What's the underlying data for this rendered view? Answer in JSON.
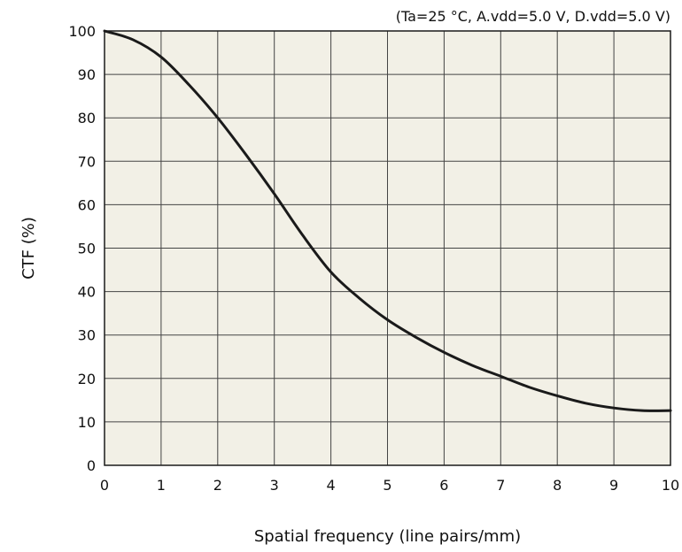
{
  "chart_data": {
    "type": "line",
    "title": "",
    "annotation": "(Ta=25 °C, A.vdd=5.0 V, D.vdd=5.0 V)",
    "xlabel": "Spatial frequency (line pairs/mm)",
    "ylabel": "CTF (%)",
    "xlim": [
      0,
      10
    ],
    "ylim": [
      0,
      100
    ],
    "xticks": [
      "0",
      "1",
      "2",
      "3",
      "4",
      "5",
      "6",
      "7",
      "8",
      "9",
      "10"
    ],
    "yticks": [
      "0",
      "10",
      "20",
      "30",
      "40",
      "50",
      "60",
      "70",
      "80",
      "90",
      "100"
    ],
    "grid": true,
    "plot_background": "#f2f0e6",
    "line_color": "#1a1a1a",
    "series": [
      {
        "x": [
          0,
          0.5,
          1,
          1.5,
          2,
          2.5,
          3,
          3.5,
          4,
          4.5,
          5,
          5.5,
          6,
          6.5,
          7,
          7.5,
          8,
          8.5,
          9,
          9.5,
          10
        ],
        "y": [
          100,
          98,
          94,
          87.5,
          80,
          71.5,
          62.5,
          53,
          44.5,
          38.5,
          33.5,
          29.5,
          26,
          23,
          20.5,
          18,
          16,
          14.3,
          13.2,
          12.6,
          12.6
        ]
      }
    ]
  }
}
